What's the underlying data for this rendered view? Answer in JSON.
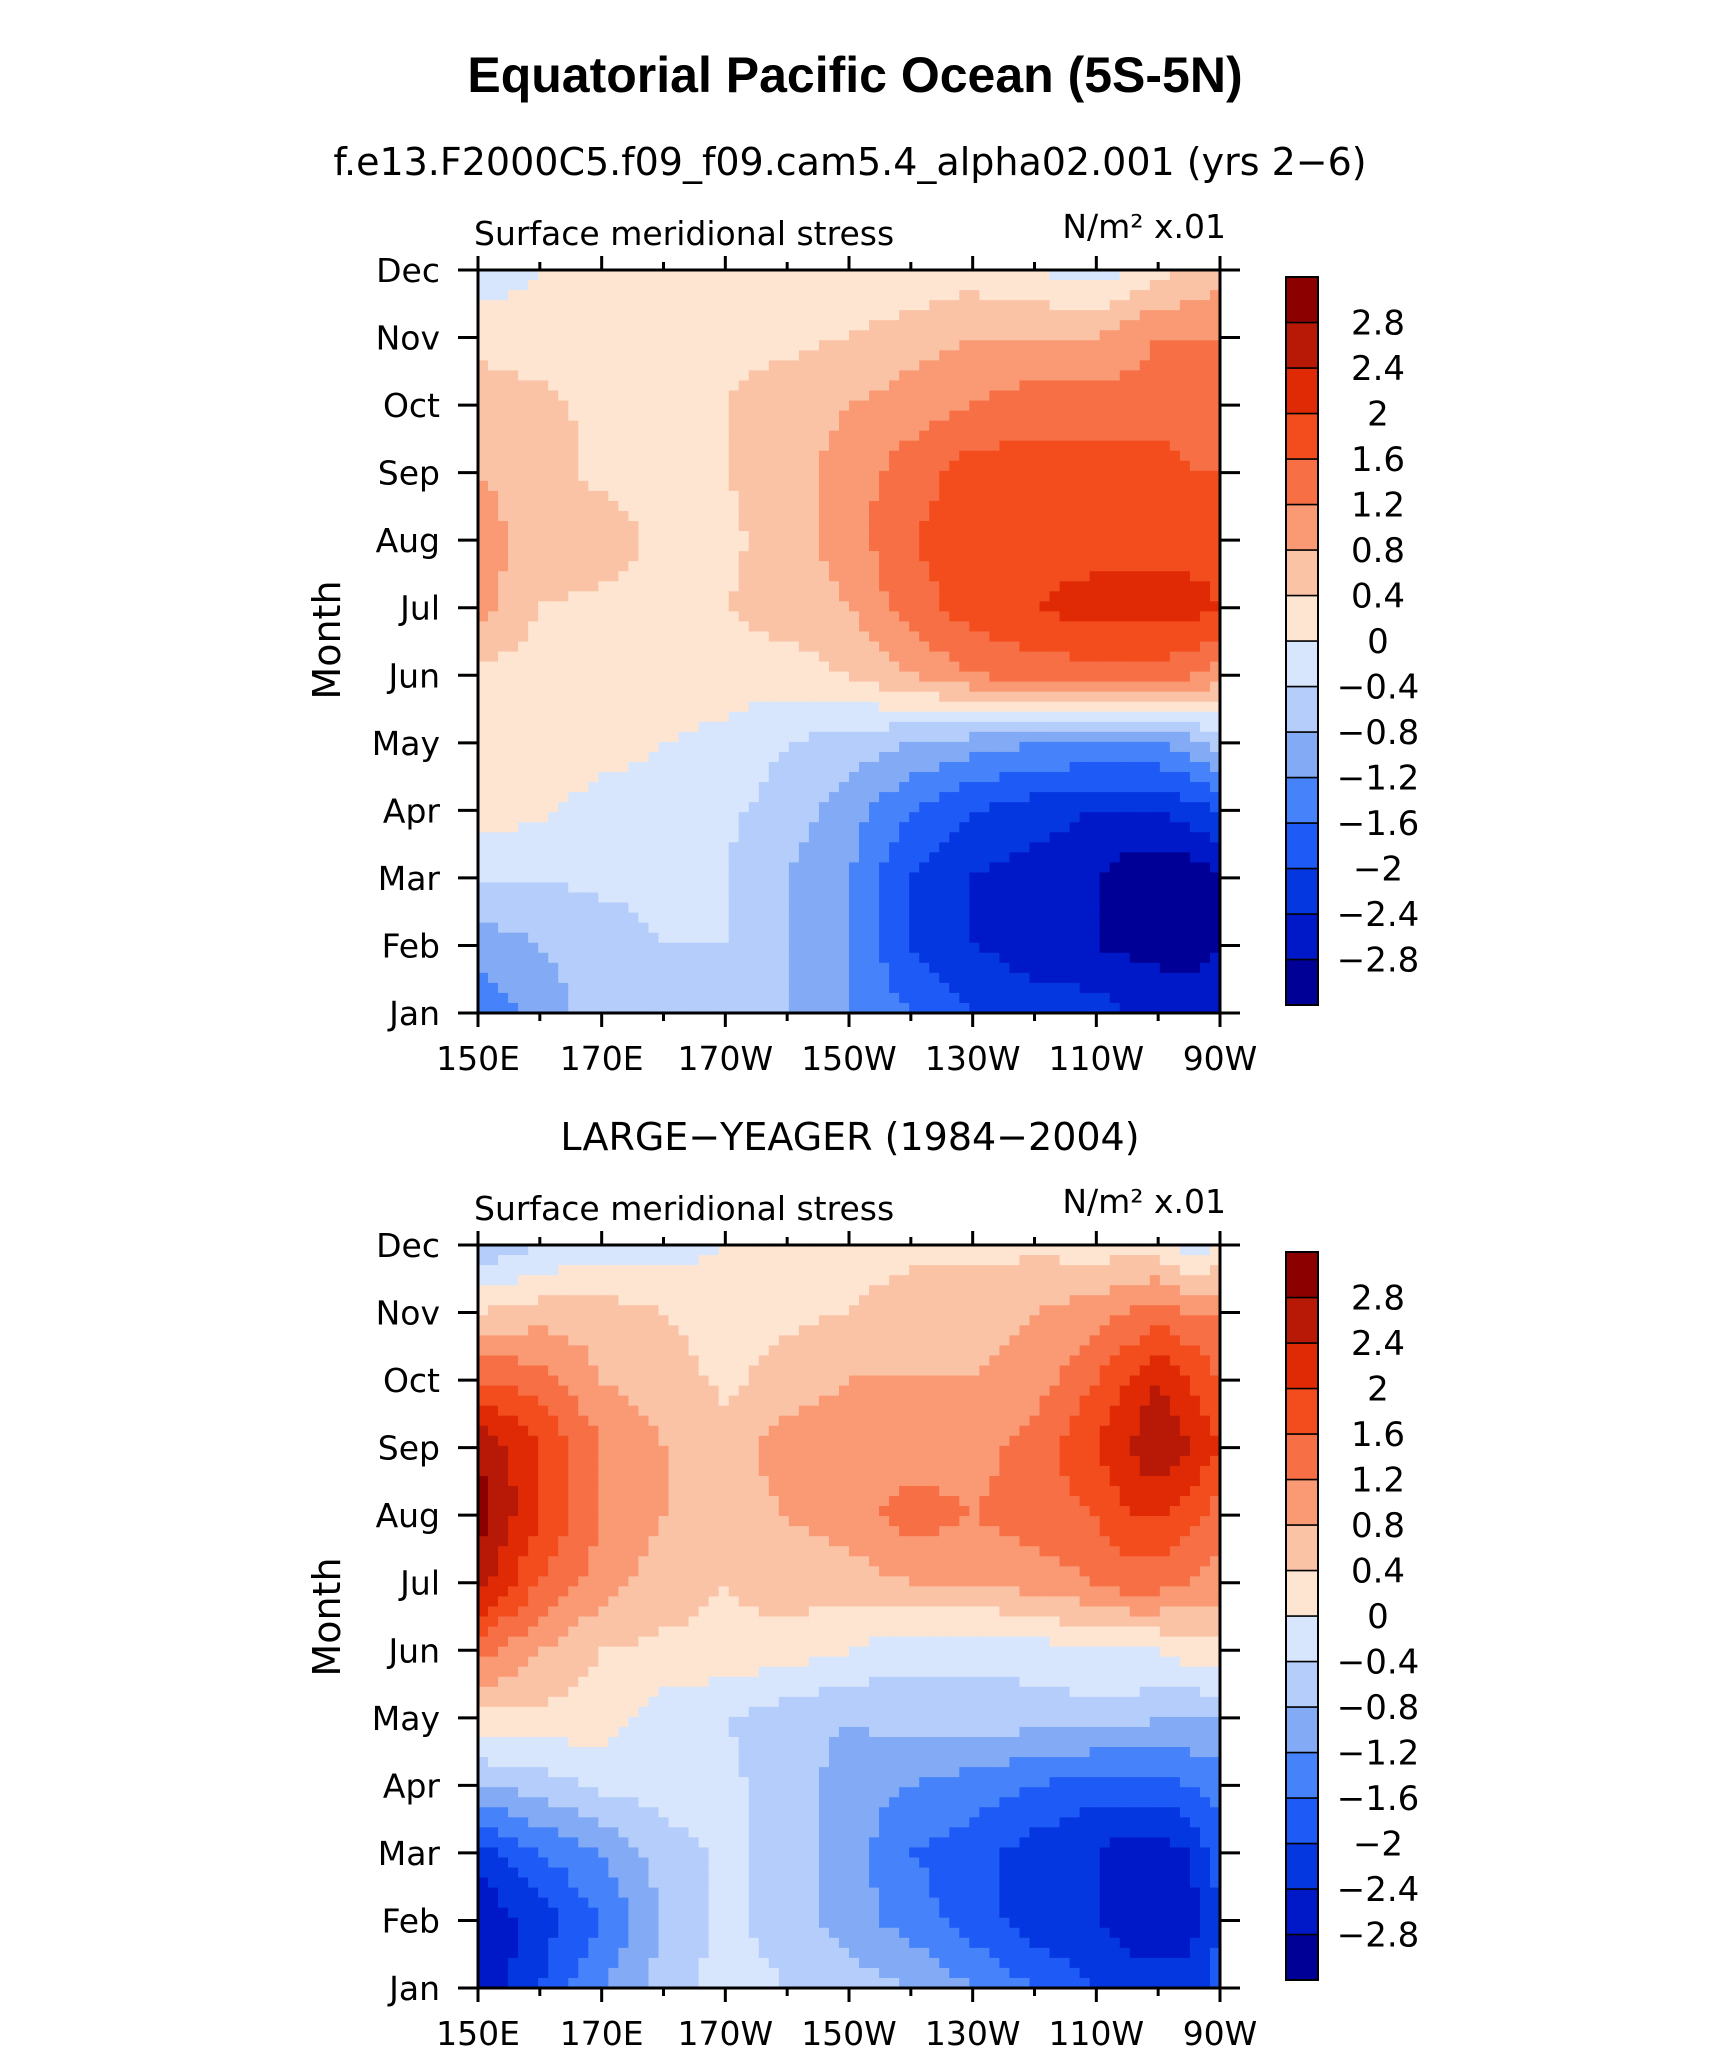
{
  "title": "Equatorial Pacific Ocean (5S-5N)",
  "chart_data": [
    {
      "type": "heatmap",
      "subtitle": "f.e13.F2000C5.f09_f09.cam5.4_alpha02.001 (yrs 2−6)",
      "left_label": "Surface meridional stress",
      "units_label": "N/m² x.01",
      "ylabel": "Month",
      "x_tick_labels": [
        "150E",
        "170E",
        "170W",
        "150W",
        "130W",
        "110W",
        "90W"
      ],
      "y_tick_labels": [
        "Jan",
        "Feb",
        "Mar",
        "Apr",
        "May",
        "Jun",
        "Jul",
        "Aug",
        "Sep",
        "Oct",
        "Nov",
        "Dec"
      ],
      "x": [
        150,
        160,
        170,
        180,
        190,
        200,
        210,
        220,
        230,
        240,
        250,
        255,
        260,
        265,
        270
      ],
      "y": [
        "Jan",
        "Feb",
        "Mar",
        "Apr",
        "May",
        "Jun",
        "Jul",
        "Aug",
        "Sep",
        "Oct",
        "Nov",
        "Dec"
      ],
      "z": [
        [
          -1.6,
          -1.0,
          -0.6,
          -0.6,
          -0.6,
          -0.8,
          -1.2,
          -1.6,
          -2.0,
          -2.2,
          -2.2,
          -2.4,
          -2.4,
          -2.6,
          -2.4
        ],
        [
          -1.0,
          -0.8,
          -0.6,
          -0.4,
          -0.4,
          -0.8,
          -1.2,
          -2.0,
          -2.4,
          -2.6,
          -2.8,
          -2.9,
          -3.0,
          -3.0,
          -2.8
        ],
        [
          -0.4,
          -0.4,
          -0.3,
          -0.3,
          -0.4,
          -0.8,
          -1.2,
          -2.0,
          -2.4,
          -2.6,
          -2.8,
          -3.0,
          -3.1,
          -3.1,
          -2.9
        ],
        [
          0.2,
          0.1,
          -0.2,
          -0.2,
          -0.3,
          -0.6,
          -1.0,
          -1.6,
          -2.0,
          -2.2,
          -2.4,
          -2.4,
          -2.4,
          -2.2,
          -2.0
        ],
        [
          0.3,
          0.3,
          0.2,
          0.0,
          -0.1,
          -0.4,
          -0.6,
          -0.8,
          -1.0,
          -1.2,
          -1.2,
          -1.2,
          -1.2,
          -1.0,
          -0.6
        ],
        [
          0.3,
          0.2,
          0.2,
          0.2,
          0.2,
          0.2,
          0.4,
          0.8,
          1.2,
          1.4,
          1.4,
          1.4,
          1.4,
          1.3,
          1.0
        ],
        [
          1.0,
          0.4,
          0.3,
          0.3,
          0.4,
          0.6,
          0.8,
          1.4,
          1.8,
          2.0,
          2.2,
          2.2,
          2.2,
          2.2,
          2.0
        ],
        [
          1.0,
          0.6,
          0.6,
          0.3,
          0.3,
          0.6,
          1.0,
          1.6,
          1.8,
          1.8,
          1.8,
          1.8,
          1.8,
          1.8,
          1.8
        ],
        [
          0.8,
          0.6,
          0.3,
          0.3,
          0.4,
          0.6,
          1.0,
          1.4,
          1.8,
          1.8,
          1.8,
          1.8,
          1.8,
          1.6,
          1.6
        ],
        [
          0.6,
          0.5,
          0.3,
          0.3,
          0.4,
          0.6,
          0.8,
          1.0,
          1.2,
          1.4,
          1.4,
          1.4,
          1.4,
          1.4,
          1.4
        ],
        [
          0.3,
          0.2,
          0.2,
          0.2,
          0.3,
          0.3,
          0.4,
          0.6,
          0.8,
          0.8,
          0.8,
          1.0,
          1.2,
          1.2,
          1.2
        ],
        [
          -0.3,
          0.0,
          0.1,
          0.1,
          0.1,
          0.1,
          0.1,
          0.1,
          0.2,
          0.0,
          -0.2,
          0.0,
          0.3,
          0.4,
          0.6
        ]
      ]
    },
    {
      "type": "heatmap",
      "subtitle": "LARGE−YEAGER (1984−2004)",
      "left_label": "Surface meridional stress",
      "units_label": "N/m² x.01",
      "ylabel": "Month",
      "x_tick_labels": [
        "150E",
        "170E",
        "170W",
        "150W",
        "130W",
        "110W",
        "90W"
      ],
      "y_tick_labels": [
        "Jan",
        "Feb",
        "Mar",
        "Apr",
        "May",
        "Jun",
        "Jul",
        "Aug",
        "Sep",
        "Oct",
        "Nov",
        "Dec"
      ],
      "x": [
        150,
        160,
        170,
        180,
        190,
        200,
        210,
        220,
        230,
        240,
        250,
        255,
        260,
        265,
        270
      ],
      "y": [
        "Jan",
        "Feb",
        "Mar",
        "Apr",
        "May",
        "Jun",
        "Jul",
        "Aug",
        "Sep",
        "Oct",
        "Nov",
        "Dec"
      ],
      "z": [
        [
          -2.8,
          -2.0,
          -1.2,
          -0.6,
          -0.2,
          -0.4,
          -0.6,
          -0.8,
          -1.2,
          -1.6,
          -2.0,
          -2.2,
          -2.2,
          -2.2,
          -1.8
        ],
        [
          -2.8,
          -2.2,
          -1.6,
          -0.8,
          -0.3,
          -0.6,
          -1.0,
          -1.4,
          -1.8,
          -2.2,
          -2.4,
          -2.6,
          -2.6,
          -2.6,
          -2.0
        ],
        [
          -2.2,
          -1.6,
          -1.2,
          -0.6,
          -0.3,
          -0.6,
          -1.0,
          -1.6,
          -1.8,
          -2.2,
          -2.4,
          -2.6,
          -2.6,
          -2.4,
          -1.8
        ],
        [
          -0.8,
          -0.6,
          -0.3,
          -0.2,
          -0.3,
          -0.6,
          -1.0,
          -1.2,
          -1.4,
          -1.6,
          -1.8,
          -1.8,
          -1.8,
          -1.6,
          -1.4
        ],
        [
          0.3,
          0.3,
          0.2,
          -0.2,
          -0.4,
          -0.6,
          -0.8,
          -0.6,
          -0.6,
          -0.6,
          -0.6,
          -0.6,
          -0.8,
          -0.8,
          -0.8
        ],
        [
          1.4,
          0.8,
          0.4,
          0.3,
          0.3,
          0.2,
          0.0,
          -0.3,
          -0.3,
          -0.2,
          0.0,
          0.0,
          0.0,
          0.2,
          0.3
        ],
        [
          2.6,
          1.6,
          1.0,
          0.6,
          0.4,
          0.6,
          0.6,
          0.8,
          0.8,
          1.0,
          1.2,
          1.4,
          1.4,
          1.2,
          1.0
        ],
        [
          3.0,
          2.0,
          1.2,
          0.8,
          0.6,
          0.8,
          1.0,
          1.4,
          1.2,
          1.4,
          1.6,
          2.0,
          2.0,
          1.8,
          1.4
        ],
        [
          2.8,
          2.0,
          1.2,
          0.8,
          0.6,
          1.0,
          1.0,
          1.0,
          1.0,
          1.4,
          2.0,
          2.4,
          2.8,
          2.4,
          2.0
        ],
        [
          1.6,
          1.4,
          0.8,
          0.6,
          0.3,
          0.6,
          0.8,
          0.8,
          0.8,
          1.0,
          1.6,
          2.0,
          2.4,
          2.0,
          1.6
        ],
        [
          0.4,
          0.6,
          0.6,
          0.4,
          0.2,
          0.3,
          0.4,
          0.6,
          0.6,
          0.8,
          1.0,
          1.2,
          1.4,
          1.2,
          1.2
        ],
        [
          -0.8,
          -0.4,
          -0.2,
          -0.2,
          0.0,
          0.0,
          0.2,
          0.3,
          0.3,
          0.3,
          0.2,
          0.2,
          0.2,
          -0.2,
          0.0
        ]
      ]
    }
  ],
  "colorbar": {
    "levels": [
      -2.8,
      -2.4,
      -2,
      -1.6,
      -1.2,
      -0.8,
      -0.4,
      0,
      0.4,
      0.8,
      1.2,
      1.6,
      2,
      2.4,
      2.8
    ],
    "labels": [
      "−2.8",
      "−2.4",
      "−2",
      "−1.6",
      "−1.2",
      "−0.8",
      "−0.4",
      "0",
      "0.4",
      "0.8",
      "1.2",
      "1.6",
      "2",
      "2.4",
      "2.8"
    ],
    "colors": [
      "#000096",
      "#0019c8",
      "#0537e1",
      "#1e5af5",
      "#4682fa",
      "#82aaf5",
      "#b4cdfa",
      "#d7e6fc",
      "#fde5d2",
      "#fbc3a6",
      "#fa9a74",
      "#f76f45",
      "#f34d1e",
      "#e02a05",
      "#b81906",
      "#8c0000"
    ]
  }
}
